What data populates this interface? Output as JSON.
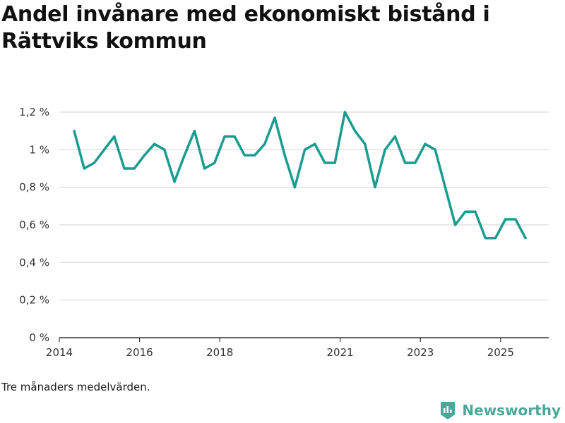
{
  "page": {
    "title": "Andel invånare med ekonomiskt bistånd i Rättviks kommun",
    "note": "Tre månaders medelvärden.",
    "brand": "Newsworthy"
  },
  "colors": {
    "line": "#1a9c8f",
    "grid": "#d9d9d9",
    "axis": "#333333",
    "brand": "#4aa89a"
  },
  "chart_data": {
    "type": "line",
    "title": "Andel invånare med ekonomiskt bistånd i Rättviks kommun",
    "xlabel": "",
    "ylabel": "",
    "ylim": [
      0,
      1.2
    ],
    "xlim": [
      2014.0,
      2026.2
    ],
    "y_ticks": [
      0,
      0.2,
      0.4,
      0.6,
      0.8,
      1.0,
      1.2
    ],
    "y_tick_labels": [
      "0 %",
      "0,2 %",
      "0,4 %",
      "0,6 %",
      "0,8 %",
      "1 %",
      "1,2 %"
    ],
    "x_ticks": [
      2014,
      2016,
      2018,
      2021,
      2023,
      2025
    ],
    "x_tick_labels": [
      "2014",
      "2016",
      "2018",
      "2021",
      "2023",
      "2025"
    ],
    "series": [
      {
        "name": "Andel invånare med ekonomiskt bistånd",
        "x": [
          2014.37,
          2014.62,
          2014.87,
          2015.12,
          2015.37,
          2015.62,
          2015.87,
          2016.12,
          2016.37,
          2016.62,
          2016.87,
          2017.12,
          2017.37,
          2017.62,
          2017.87,
          2018.12,
          2018.37,
          2018.62,
          2018.87,
          2019.12,
          2019.37,
          2019.62,
          2019.87,
          2020.12,
          2020.37,
          2020.62,
          2020.87,
          2021.12,
          2021.37,
          2021.62,
          2021.87,
          2022.12,
          2022.37,
          2022.62,
          2022.87,
          2023.12,
          2023.37,
          2023.62,
          2023.87,
          2024.12,
          2024.37,
          2024.62,
          2024.87,
          2025.12,
          2025.37,
          2025.62
        ],
        "values": [
          1.1,
          0.9,
          0.93,
          1.0,
          1.07,
          0.9,
          0.9,
          0.97,
          1.03,
          1.0,
          0.83,
          0.97,
          1.1,
          0.9,
          0.93,
          1.07,
          1.07,
          0.97,
          0.97,
          1.03,
          1.17,
          0.97,
          0.8,
          1.0,
          1.03,
          0.93,
          0.93,
          1.2,
          1.1,
          1.03,
          0.8,
          1.0,
          1.07,
          0.93,
          0.93,
          1.03,
          1.0,
          0.8,
          0.6,
          0.67,
          0.67,
          0.53,
          0.53,
          0.63,
          0.63,
          0.53
        ]
      }
    ]
  }
}
